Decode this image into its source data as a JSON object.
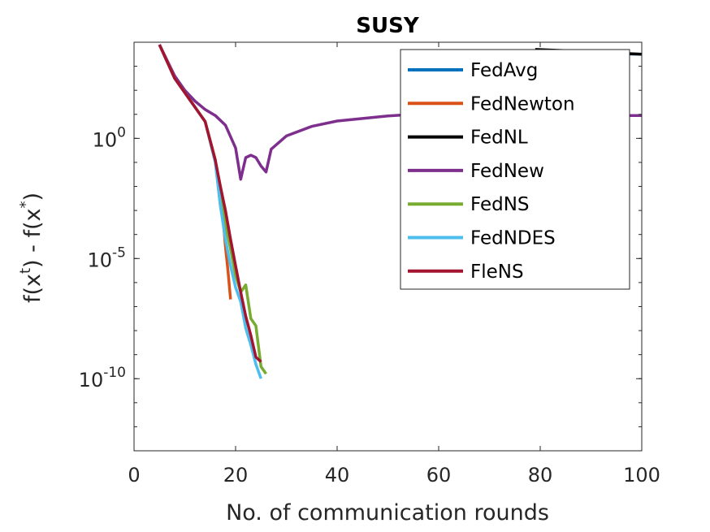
{
  "chart_data": {
    "type": "line",
    "title": "SUSY",
    "xlabel": "No. of communication rounds",
    "ylabel": {
      "base": "f(x",
      "sup1": "t",
      "mid": ") - f(x",
      "sup2": "*",
      "end": ")"
    },
    "xlim": [
      0,
      100
    ],
    "ylim_log10": [
      -13,
      4
    ],
    "yscale": "log",
    "grid": false,
    "legend_placement": "top-right",
    "x_ticks": [
      "0",
      "20",
      "40",
      "60",
      "80",
      "100"
    ],
    "x_tick_values": [
      0,
      20,
      40,
      60,
      80,
      100
    ],
    "y_ticks": [
      {
        "log": 0,
        "base": "10",
        "exp": "0"
      },
      {
        "log": -5,
        "base": "10",
        "exp": "-5"
      },
      {
        "log": -10,
        "base": "10",
        "exp": "-10"
      }
    ],
    "series": [
      {
        "name": "FedAvg",
        "color": "#0072BD",
        "x": [
          69,
          75,
          80,
          85,
          90,
          95,
          100
        ],
        "log10_y": [
          3.65,
          3.62,
          3.6,
          3.57,
          3.55,
          3.52,
          3.5
        ]
      },
      {
        "name": "FedNewton",
        "color": "#D95319",
        "x": [
          5,
          8,
          10,
          12,
          14,
          16,
          17,
          17.6,
          18,
          18.5,
          19
        ],
        "log10_y": [
          3.9,
          2.5,
          1.9,
          1.3,
          0.7,
          -0.9,
          -2.8,
          -3.5,
          -4.5,
          -5.5,
          -6.7
        ]
      },
      {
        "name": "FedNL",
        "color": "#000000",
        "x": [
          79,
          85,
          90,
          95,
          100
        ],
        "log10_y": [
          3.7,
          3.65,
          3.6,
          3.55,
          3.5
        ]
      },
      {
        "name": "FedNew",
        "color": "#7E2F8E",
        "x": [
          5,
          8,
          10,
          12,
          14,
          16,
          18,
          20,
          21,
          22,
          23,
          24,
          25,
          26,
          27,
          30,
          35,
          40,
          50,
          60,
          70,
          80,
          90,
          100
        ],
        "log10_y": [
          3.9,
          2.6,
          2.0,
          1.55,
          1.2,
          0.95,
          0.55,
          -0.4,
          -1.7,
          -0.8,
          -0.7,
          -0.8,
          -1.15,
          -1.4,
          -0.45,
          0.1,
          0.5,
          0.72,
          0.93,
          1.07,
          1.0,
          1.02,
          0.95,
          0.95
        ]
      },
      {
        "name": "FedNS",
        "color": "#77AC30",
        "x": [
          5,
          8,
          10,
          12,
          14,
          16,
          17,
          18,
          19,
          20,
          21,
          22,
          23,
          24,
          25,
          26
        ],
        "log10_y": [
          3.9,
          2.5,
          1.9,
          1.3,
          0.7,
          -0.9,
          -2.4,
          -3.6,
          -4.6,
          -5.7,
          -6.4,
          -6.1,
          -7.5,
          -7.8,
          -9.5,
          -9.8
        ]
      },
      {
        "name": "FedNDES",
        "color": "#4DBEEE",
        "x": [
          5,
          8,
          10,
          12,
          14,
          16,
          17,
          18,
          19,
          20,
          21,
          22,
          23,
          24,
          25
        ],
        "log10_y": [
          3.9,
          2.5,
          1.9,
          1.3,
          0.7,
          -1.0,
          -2.8,
          -4.2,
          -5.3,
          -6.2,
          -6.8,
          -7.9,
          -8.6,
          -9.4,
          -10.0
        ]
      },
      {
        "name": "FleNS",
        "color": "#A2142F",
        "x": [
          5,
          8,
          10,
          12,
          14,
          16,
          17,
          18,
          19,
          20,
          21,
          22,
          23,
          24,
          25
        ],
        "log10_y": [
          3.9,
          2.5,
          1.9,
          1.3,
          0.7,
          -0.9,
          -2.0,
          -3.0,
          -4.2,
          -5.3,
          -6.4,
          -7.4,
          -8.2,
          -9.1,
          -9.3
        ]
      }
    ]
  }
}
